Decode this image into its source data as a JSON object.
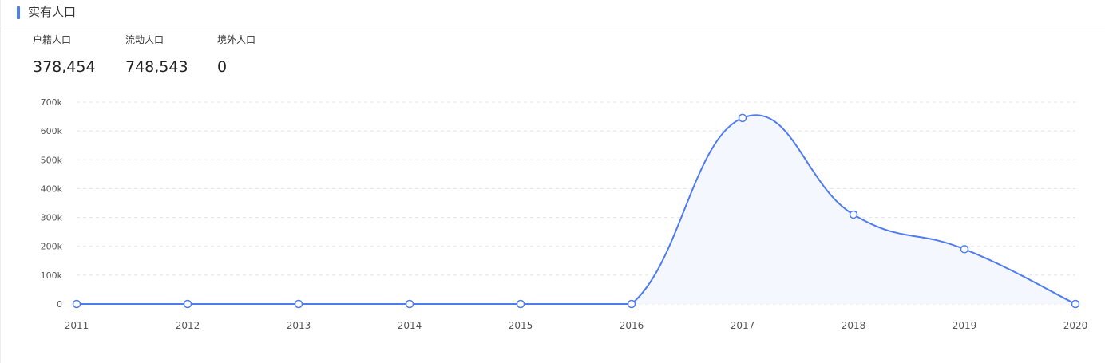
{
  "header": {
    "title": "实有人口",
    "accent_color": "#4f7cf0"
  },
  "stats": [
    {
      "label": "户籍人口",
      "value": "378,454"
    },
    {
      "label": "流动人口",
      "value": "748,543"
    },
    {
      "label": "境外人口",
      "value": "0"
    }
  ],
  "chart_data": {
    "type": "area",
    "x": [
      "2011",
      "2012",
      "2013",
      "2014",
      "2015",
      "2016",
      "2017",
      "2018",
      "2019",
      "2020"
    ],
    "values": [
      0,
      0,
      0,
      0,
      0,
      0,
      645000,
      310000,
      190000,
      0
    ],
    "ylim": [
      0,
      700000
    ],
    "yticks": [
      {
        "value": 0,
        "label": "0"
      },
      {
        "value": 100000,
        "label": "100k"
      },
      {
        "value": 200000,
        "label": "200k"
      },
      {
        "value": 300000,
        "label": "300k"
      },
      {
        "value": 400000,
        "label": "400k"
      },
      {
        "value": 500000,
        "label": "500k"
      },
      {
        "value": 600000,
        "label": "600k"
      },
      {
        "value": 700000,
        "label": "700k"
      }
    ],
    "grid": "horizontal dashed",
    "line_color": "#4f7cf0",
    "fill_color": "#f4f7fd",
    "smooth": true
  }
}
